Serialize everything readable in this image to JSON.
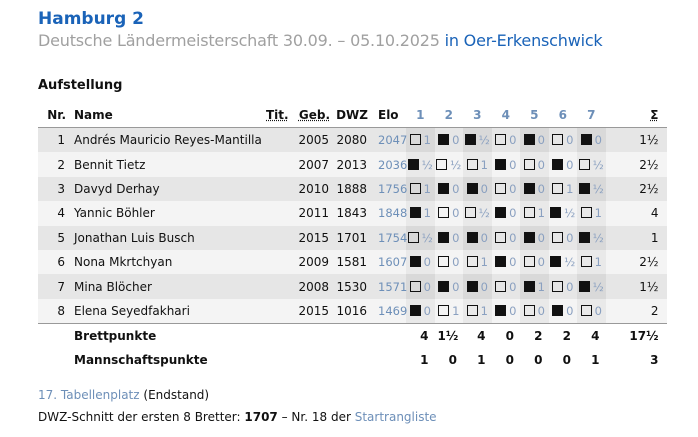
{
  "header": {
    "title": "Hamburg 2",
    "subtitle": "Deutsche Ländermeisterschaft 30.09. – 05.10.2025",
    "location_link": "in Oer-Erkenschwick"
  },
  "section_title": "Aufstellung",
  "columns": {
    "nr": "Nr.",
    "name": "Name",
    "tit": "Tit.",
    "geb": "Geb.",
    "dwz": "DWZ",
    "elo": "Elo",
    "rounds": [
      "1",
      "2",
      "3",
      "4",
      "5",
      "6",
      "7"
    ],
    "sum": "Σ"
  },
  "rows": [
    {
      "nr": "1",
      "name": "Andrés Mauricio Reyes-Mantilla",
      "tit": "",
      "geb": "2005",
      "dwz": "2080",
      "elo": "2047",
      "results": [
        {
          "c": "w",
          "r": "1"
        },
        {
          "c": "b",
          "r": "0"
        },
        {
          "c": "b",
          "r": "½"
        },
        {
          "c": "w",
          "r": "0"
        },
        {
          "c": "b",
          "r": "0"
        },
        {
          "c": "w",
          "r": "0"
        },
        {
          "c": "b",
          "r": "0"
        }
      ],
      "sum": "1½"
    },
    {
      "nr": "2",
      "name": "Bennit Tietz",
      "tit": "",
      "geb": "2007",
      "dwz": "2013",
      "elo": "2036",
      "results": [
        {
          "c": "b",
          "r": "½"
        },
        {
          "c": "w",
          "r": "½"
        },
        {
          "c": "w",
          "r": "1"
        },
        {
          "c": "b",
          "r": "0"
        },
        {
          "c": "w",
          "r": "0"
        },
        {
          "c": "b",
          "r": "0"
        },
        {
          "c": "w",
          "r": "½"
        }
      ],
      "sum": "2½"
    },
    {
      "nr": "3",
      "name": "Davyd Derhay",
      "tit": "",
      "geb": "2010",
      "dwz": "1888",
      "elo": "1756",
      "results": [
        {
          "c": "w",
          "r": "1"
        },
        {
          "c": "b",
          "r": "0"
        },
        {
          "c": "b",
          "r": "0"
        },
        {
          "c": "w",
          "r": "0"
        },
        {
          "c": "b",
          "r": "0"
        },
        {
          "c": "w",
          "r": "1"
        },
        {
          "c": "b",
          "r": "½"
        }
      ],
      "sum": "2½"
    },
    {
      "nr": "4",
      "name": "Yannic Böhler",
      "tit": "",
      "geb": "2011",
      "dwz": "1843",
      "elo": "1848",
      "results": [
        {
          "c": "b",
          "r": "1"
        },
        {
          "c": "w",
          "r": "0"
        },
        {
          "c": "w",
          "r": "½"
        },
        {
          "c": "b",
          "r": "0"
        },
        {
          "c": "w",
          "r": "1"
        },
        {
          "c": "b",
          "r": "½"
        },
        {
          "c": "w",
          "r": "1"
        }
      ],
      "sum": "4"
    },
    {
      "nr": "5",
      "name": "Jonathan Luis Busch",
      "tit": "",
      "geb": "2015",
      "dwz": "1701",
      "elo": "1754",
      "results": [
        {
          "c": "w",
          "r": "½"
        },
        {
          "c": "b",
          "r": "0"
        },
        {
          "c": "b",
          "r": "0"
        },
        {
          "c": "w",
          "r": "0"
        },
        {
          "c": "b",
          "r": "0"
        },
        {
          "c": "w",
          "r": "0"
        },
        {
          "c": "b",
          "r": "½"
        }
      ],
      "sum": "1"
    },
    {
      "nr": "6",
      "name": "Nona Mkrtchyan",
      "tit": "",
      "geb": "2009",
      "dwz": "1581",
      "elo": "1607",
      "results": [
        {
          "c": "b",
          "r": "0"
        },
        {
          "c": "w",
          "r": "0"
        },
        {
          "c": "w",
          "r": "1"
        },
        {
          "c": "b",
          "r": "0"
        },
        {
          "c": "w",
          "r": "0"
        },
        {
          "c": "b",
          "r": "½"
        },
        {
          "c": "w",
          "r": "1"
        }
      ],
      "sum": "2½"
    },
    {
      "nr": "7",
      "name": "Mina Blöcher",
      "tit": "",
      "geb": "2008",
      "dwz": "1530",
      "elo": "1571",
      "results": [
        {
          "c": "w",
          "r": "0"
        },
        {
          "c": "b",
          "r": "0"
        },
        {
          "c": "b",
          "r": "0"
        },
        {
          "c": "w",
          "r": "0"
        },
        {
          "c": "b",
          "r": "1"
        },
        {
          "c": "w",
          "r": "0"
        },
        {
          "c": "b",
          "r": "½"
        }
      ],
      "sum": "1½"
    },
    {
      "nr": "8",
      "name": "Elena Seyedfakhari",
      "tit": "",
      "geb": "2015",
      "dwz": "1016",
      "elo": "1469",
      "results": [
        {
          "c": "b",
          "r": "0"
        },
        {
          "c": "w",
          "r": "1"
        },
        {
          "c": "w",
          "r": "1"
        },
        {
          "c": "b",
          "r": "0"
        },
        {
          "c": "w",
          "r": "0"
        },
        {
          "c": "b",
          "r": "0"
        },
        {
          "c": "w",
          "r": "0"
        }
      ],
      "sum": "2"
    }
  ],
  "totals": [
    {
      "label": "Brettpunkte",
      "values": [
        "4",
        "1½",
        "4",
        "0",
        "2",
        "2",
        "4"
      ],
      "sum": "17½"
    },
    {
      "label": "Mannschaftspunkte",
      "values": [
        "1",
        "0",
        "1",
        "0",
        "0",
        "0",
        "1"
      ],
      "sum": "3"
    }
  ],
  "footer": {
    "rank_link": "17. Tabellenplatz",
    "rank_suffix": "(Endstand)",
    "dwz_prefix": "DWZ-Schnitt der ersten 8 Bretter:",
    "dwz_value": "1707",
    "dwz_mid": "– Nr. 18 der",
    "dwz_link": "Startrangliste"
  },
  "colors": {
    "title": "#1a63b8",
    "link": "#6d8fb8"
  }
}
